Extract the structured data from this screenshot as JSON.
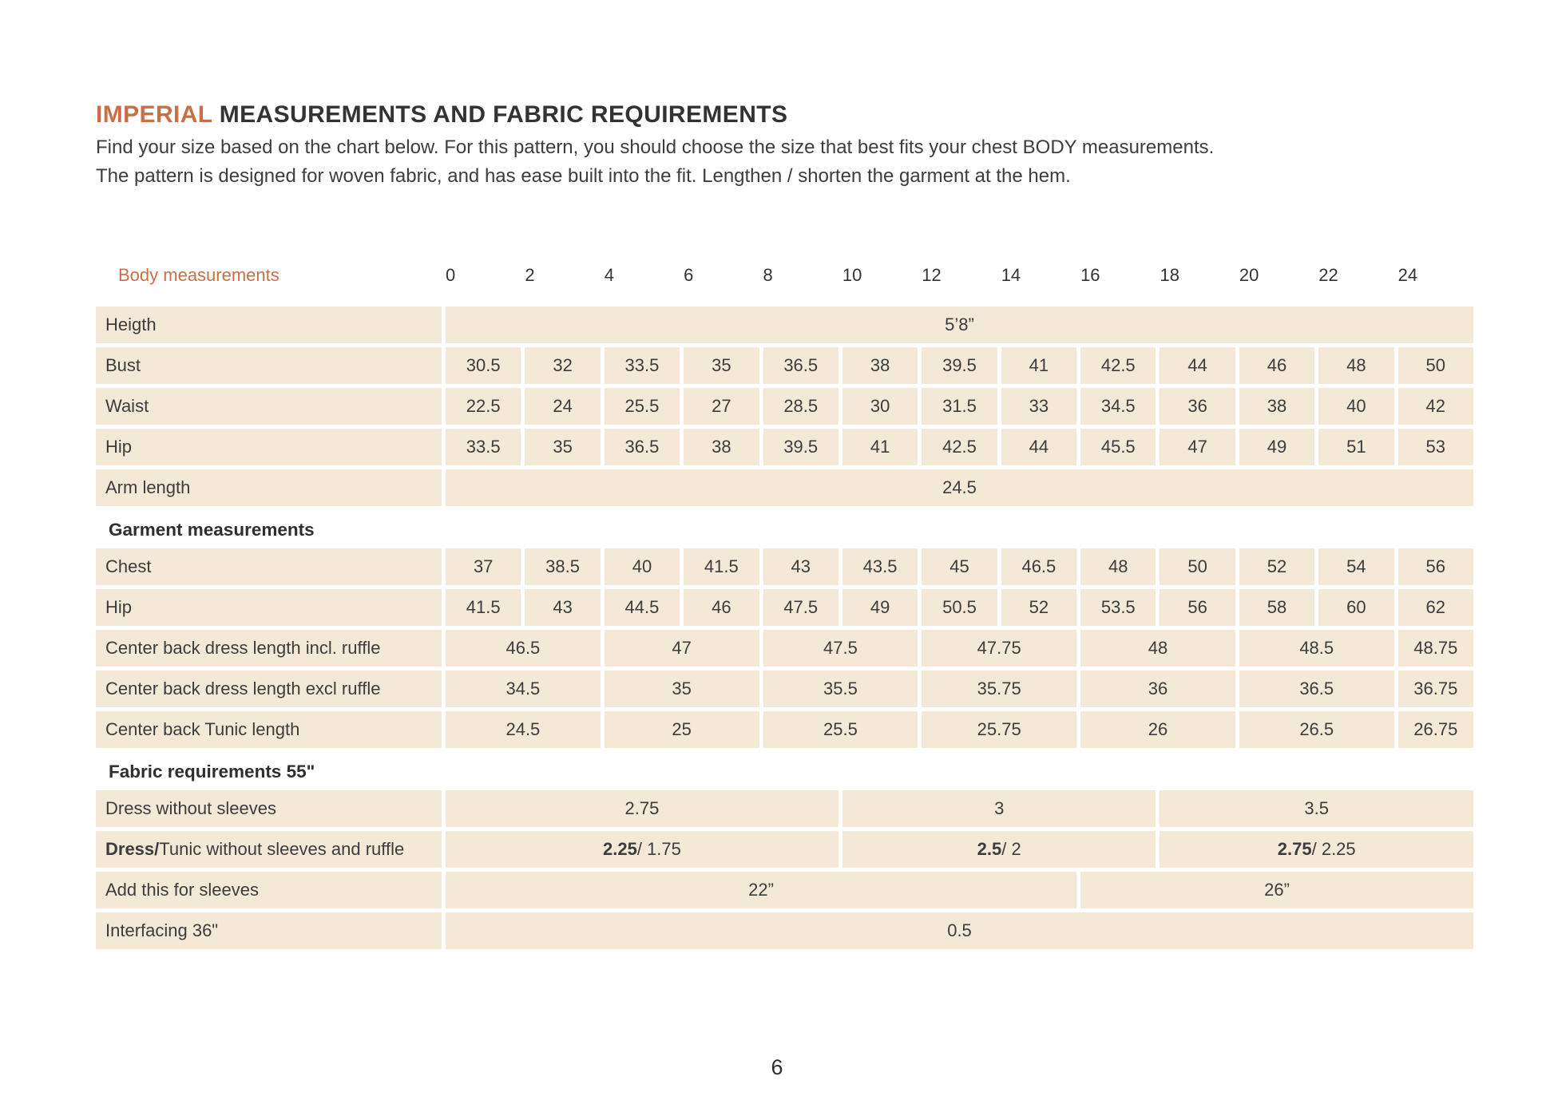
{
  "colors": {
    "accent": "#c96f48",
    "row_background": "#f4e9d6",
    "text": "#3c3c3c"
  },
  "header": {
    "title_highlight": "IMPERIAL",
    "title_rest": "MEASUREMENTS AND FABRIC REQUIREMENTS",
    "intro_line1": "Find your size based on the chart below. For this pattern, you should choose the size that best fits your chest BODY measurements.",
    "intro_line2": "The pattern is designed for woven fabric, and has ease built into the fit. Lengthen / shorten the garment at the hem."
  },
  "table": {
    "header_label": "Body measurements",
    "sizes": [
      "0",
      "2",
      "4",
      "6",
      "8",
      "10",
      "12",
      "14",
      "16",
      "18",
      "20",
      "22",
      "24"
    ],
    "rows": [
      {
        "kind": "data",
        "label": "Heigth",
        "cells": [
          {
            "text": "5’8”",
            "span": 13
          }
        ]
      },
      {
        "kind": "data",
        "label": "Bust",
        "cells": [
          "30.5",
          "32",
          "33.5",
          "35",
          "36.5",
          "38",
          "39.5",
          "41",
          "42.5",
          "44",
          "46",
          "48",
          "50"
        ]
      },
      {
        "kind": "data",
        "label": "Waist",
        "cells": [
          "22.5",
          "24",
          "25.5",
          "27",
          "28.5",
          "30",
          "31.5",
          "33",
          "34.5",
          "36",
          "38",
          "40",
          "42"
        ]
      },
      {
        "kind": "data",
        "label": "Hip",
        "cells": [
          "33.5",
          "35",
          "36.5",
          "38",
          "39.5",
          "41",
          "42.5",
          "44",
          "45.5",
          "47",
          "49",
          "51",
          "53"
        ]
      },
      {
        "kind": "data",
        "label": "Arm length",
        "cells": [
          {
            "text": "24.5",
            "span": 13
          }
        ]
      },
      {
        "kind": "section",
        "label": "Garment measurements"
      },
      {
        "kind": "data",
        "label": "Chest",
        "cells": [
          "37",
          "38.5",
          "40",
          "41.5",
          "43",
          "43.5",
          "45",
          "46.5",
          "48",
          "50",
          "52",
          "54",
          "56"
        ]
      },
      {
        "kind": "data",
        "label": "Hip",
        "cells": [
          "41.5",
          "43",
          "44.5",
          "46",
          "47.5",
          "49",
          "50.5",
          "52",
          "53.5",
          "56",
          "58",
          "60",
          "62"
        ]
      },
      {
        "kind": "data",
        "label": "Center back dress length incl. ruffle",
        "cells": [
          {
            "text": "46.5",
            "span": 2
          },
          {
            "text": "47",
            "span": 2
          },
          {
            "text": "47.5",
            "span": 2
          },
          {
            "text": "47.75",
            "span": 2
          },
          {
            "text": "48",
            "span": 2
          },
          {
            "text": "48.5",
            "span": 2
          },
          {
            "text": "48.75",
            "span": 1
          }
        ]
      },
      {
        "kind": "data",
        "label": "Center back dress length excl ruffle",
        "cells": [
          {
            "text": "34.5",
            "span": 2
          },
          {
            "text": "35",
            "span": 2
          },
          {
            "text": "35.5",
            "span": 2
          },
          {
            "text": "35.75",
            "span": 2
          },
          {
            "text": "36",
            "span": 2
          },
          {
            "text": "36.5",
            "span": 2
          },
          {
            "text": "36.75",
            "span": 1
          }
        ]
      },
      {
        "kind": "data",
        "label": "Center back Tunic length",
        "cells": [
          {
            "text": "24.5",
            "span": 2
          },
          {
            "text": "25",
            "span": 2
          },
          {
            "text": "25.5",
            "span": 2
          },
          {
            "text": "25.75",
            "span": 2
          },
          {
            "text": "26",
            "span": 2
          },
          {
            "text": "26.5",
            "span": 2
          },
          {
            "text": "26.75",
            "span": 1
          }
        ]
      },
      {
        "kind": "section",
        "label": "Fabric requirements 55\""
      },
      {
        "kind": "data",
        "label": "Dress without sleeves",
        "cells": [
          {
            "text": "2.75",
            "span": 5
          },
          {
            "text": "3",
            "span": 4
          },
          {
            "text": "3.5",
            "span": 4
          }
        ]
      },
      {
        "kind": "data",
        "label_strong": "Dress/",
        "label": " Tunic without sleeves and ruffle",
        "cells": [
          {
            "strong": "2.25",
            "text": " / 1.75",
            "span": 5
          },
          {
            "strong": "2.5",
            "text": " / 2",
            "span": 4
          },
          {
            "strong": "2.75",
            "text": " / 2.25",
            "span": 4
          }
        ]
      },
      {
        "kind": "data",
        "label": "Add this for sleeves",
        "cells": [
          {
            "text": "22”",
            "span": 8
          },
          {
            "text": "26”",
            "span": 5
          }
        ]
      },
      {
        "kind": "data",
        "label": "Interfacing 36\"",
        "cells": [
          {
            "text": "0.5",
            "span": 13
          }
        ]
      }
    ]
  },
  "footer": {
    "page_number": "6"
  }
}
